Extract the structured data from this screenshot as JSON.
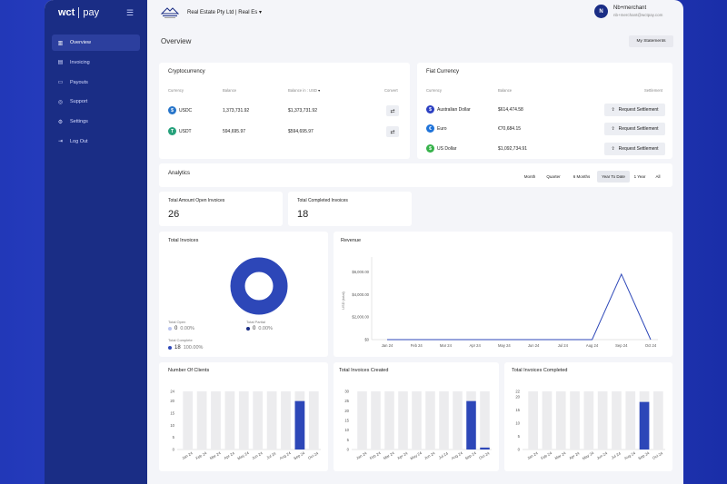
{
  "brand": {
    "name": "wct",
    "product": "pay"
  },
  "sidebar": {
    "items": [
      {
        "label": "Overview",
        "icon": "chart-icon",
        "active": true
      },
      {
        "label": "Invoicing",
        "icon": "document-icon",
        "active": false
      },
      {
        "label": "Payouts",
        "icon": "payout-icon",
        "active": false
      },
      {
        "label": "Support",
        "icon": "globe-icon",
        "active": false
      },
      {
        "label": "Settings",
        "icon": "gear-icon",
        "active": false
      },
      {
        "label": "Log Out",
        "icon": "logout-icon",
        "active": false
      }
    ]
  },
  "header": {
    "company": "Real Estate Pty Ltd | Real Es",
    "user_initial": "N",
    "user_name": "Nb+merchant",
    "user_email": "nb+merchant@wctpay.com"
  },
  "page": {
    "title": "Overview",
    "statements_label": "My Statements"
  },
  "crypto": {
    "title": "Cryptocurrency",
    "headers": {
      "currency": "Currency",
      "balance": "Balance",
      "balance_in": "Balance in : USD",
      "convert": "Convert"
    },
    "rows": [
      {
        "currency": "USDC",
        "balance": "1,373,731.92",
        "usd": "$1,373,731.92",
        "color": "#2775ca"
      },
      {
        "currency": "USDT",
        "balance": "594,695.97",
        "usd": "$594,695.97",
        "color": "#26a17b"
      }
    ]
  },
  "fiat": {
    "title": "Fiat Currency",
    "headers": {
      "currency": "Currency",
      "balance": "Balance",
      "settlement": "Settlement"
    },
    "button_label": "Request Settlement",
    "rows": [
      {
        "currency": "Australian Dollar",
        "balance": "$614,474.58",
        "color": "#2b3fc2",
        "symbol": "$"
      },
      {
        "currency": "Euro",
        "balance": "€70,684.15",
        "color": "#1f73d9",
        "symbol": "€"
      },
      {
        "currency": "US Dollar",
        "balance": "$1,092,734.91",
        "color": "#36b24a",
        "symbol": "$"
      }
    ]
  },
  "analytics": {
    "title": "Analytics",
    "periods": [
      "Month",
      "Quarter",
      "6 Months",
      "Year To Date",
      "1 Year",
      "All"
    ],
    "active_period": "Year To Date"
  },
  "stats": {
    "open_label": "Total Amount Open Invoices",
    "open_value": "26",
    "completed_label": "Total Completed Invoices",
    "completed_value": "18"
  },
  "total_invoices": {
    "title": "Total Invoices",
    "legend": [
      {
        "label": "Total Open",
        "value": "0",
        "pct": "0.00%",
        "color": "#b9c4f0"
      },
      {
        "label": "Total Partial",
        "value": "0",
        "pct": "0.00%",
        "color": "#1a2d85"
      },
      {
        "label": "Total Complete",
        "value": "18",
        "pct": "100.00%",
        "color": "#2d47b8"
      }
    ]
  },
  "accent_color": "#2d47b8",
  "chart_data": [
    {
      "type": "pie",
      "title": "Total Invoices",
      "categories": [
        "Total Open",
        "Total Partial",
        "Total Complete"
      ],
      "values": [
        0,
        0,
        18
      ]
    },
    {
      "type": "line",
      "title": "Revenue",
      "ylabel": "USD (total)",
      "x": [
        "Jan 24",
        "Feb 24",
        "Mar 24",
        "Apr 24",
        "May 24",
        "Jun 24",
        "Jul 24",
        "Aug 24",
        "Sep 24",
        "Oct 24"
      ],
      "yticks": [
        "$0",
        "$2,000.00",
        "$4,000.00",
        "$6,000.00"
      ],
      "ylim": [
        0,
        7000
      ],
      "values": [
        0,
        0,
        0,
        0,
        0,
        0,
        0,
        0,
        5800,
        0
      ]
    },
    {
      "type": "bar",
      "title": "Number Of Clients",
      "categories": [
        "Jan 24",
        "Feb 24",
        "Mar 24",
        "Apr 24",
        "May 24",
        "Jun 24",
        "Jul 24",
        "Aug 24",
        "Sep 24",
        "Oct 24"
      ],
      "yticks": [
        "0",
        "5",
        "10",
        "15",
        "20",
        "24"
      ],
      "ylim": [
        0,
        24
      ],
      "values": [
        0,
        0,
        0,
        0,
        0,
        0,
        0,
        0,
        20,
        0
      ]
    },
    {
      "type": "bar",
      "title": "Total Invoices Created",
      "categories": [
        "Jan 24",
        "Feb 24",
        "Mar 24",
        "Apr 24",
        "May 24",
        "Jun 24",
        "Jul 24",
        "Aug 24",
        "Sep 24",
        "Oct 24"
      ],
      "yticks": [
        "0",
        "5",
        "10",
        "15",
        "20",
        "25",
        "30"
      ],
      "ylim": [
        0,
        30
      ],
      "values": [
        0,
        0,
        0,
        0,
        0,
        0,
        0,
        0,
        25,
        1
      ]
    },
    {
      "type": "bar",
      "title": "Total Invoices Completed",
      "categories": [
        "Jan 24",
        "Feb 24",
        "Mar 24",
        "Apr 24",
        "May 24",
        "Jun 24",
        "Jul 24",
        "Aug 24",
        "Sep 24",
        "Oct 24"
      ],
      "yticks": [
        "0",
        "5",
        "10",
        "15",
        "20",
        "22"
      ],
      "ylim": [
        0,
        22
      ],
      "values": [
        0,
        0,
        0,
        0,
        0,
        0,
        0,
        0,
        18,
        0
      ]
    }
  ]
}
